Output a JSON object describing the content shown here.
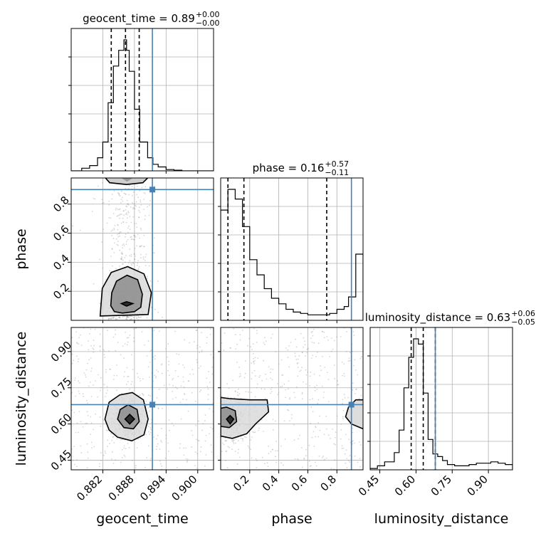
{
  "chart_data": {
    "type": "corner",
    "colors": {
      "truth": "#4682b4",
      "hist": "#000000",
      "grid": "#b0b0b0",
      "contour": "#000000",
      "samples": "#888888"
    },
    "parameters": [
      {
        "name": "geocent_time",
        "title_main": "geocent_time = 0.89",
        "title_plus": "+0.00",
        "title_minus": "−0.00",
        "range": [
          0.876,
          0.903
        ],
        "ticks": [
          0.882,
          0.888,
          0.894,
          0.9
        ],
        "tick_labels": [
          "0.882",
          "0.888",
          "0.894",
          "0.900"
        ],
        "truth": 0.8914,
        "quantiles": [
          0.8836,
          0.8863,
          0.8889
        ],
        "hist_edges": [
          0.876,
          0.878,
          0.8795,
          0.881,
          0.882,
          0.883,
          0.884,
          0.885,
          0.886,
          0.8865,
          0.887,
          0.888,
          0.889,
          0.8905,
          0.8915,
          0.8925,
          0.894,
          0.8955,
          0.897,
          0.898,
          0.903
        ],
        "hist_counts": [
          0,
          0.02,
          0.04,
          0.1,
          0.22,
          0.52,
          0.8,
          0.92,
          1.0,
          0.92,
          0.76,
          0.47,
          0.22,
          0.1,
          0.05,
          0.03,
          0.01,
          0.005,
          0,
          0
        ]
      },
      {
        "name": "phase",
        "title_main": "phase = 0.16",
        "title_plus": "+0.57",
        "title_minus": "−0.11",
        "range": [
          0.0,
          0.98
        ],
        "ticks": [
          0.2,
          0.4,
          0.6,
          0.8
        ],
        "tick_labels": [
          "0.2",
          "0.4",
          "0.6",
          "0.8"
        ],
        "truth": 0.9,
        "quantiles": [
          0.05,
          0.16,
          0.73
        ],
        "hist_edges": [
          0.0,
          0.05,
          0.1,
          0.15,
          0.2,
          0.25,
          0.3,
          0.35,
          0.4,
          0.45,
          0.5,
          0.55,
          0.6,
          0.65,
          0.7,
          0.75,
          0.8,
          0.85,
          0.88,
          0.93,
          0.98
        ],
        "hist_counts": [
          0.8,
          0.95,
          0.88,
          0.68,
          0.44,
          0.33,
          0.23,
          0.16,
          0.12,
          0.08,
          0.06,
          0.05,
          0.04,
          0.04,
          0.04,
          0.05,
          0.08,
          0.1,
          0.17,
          0.48
        ]
      },
      {
        "name": "luminosity_distance",
        "title_main": "luminosity_distance = 0.63",
        "title_plus": "+0.06",
        "title_minus": "−0.05",
        "range": [
          0.41,
          1.0
        ],
        "ticks": [
          0.45,
          0.6,
          0.75,
          0.9
        ],
        "tick_labels": [
          "0.45",
          "0.60",
          "0.75",
          "0.90"
        ],
        "truth": 0.68,
        "quantiles": [
          0.58,
          0.63,
          0.68
        ],
        "hist_edges": [
          0.41,
          0.44,
          0.47,
          0.51,
          0.53,
          0.55,
          0.57,
          0.59,
          0.61,
          0.63,
          0.65,
          0.67,
          0.69,
          0.71,
          0.73,
          0.76,
          0.79,
          0.82,
          0.85,
          0.88,
          0.91,
          0.94,
          0.97,
          1.0
        ],
        "hist_counts": [
          0.01,
          0.03,
          0.06,
          0.13,
          0.3,
          0.62,
          0.85,
          0.99,
          0.95,
          0.58,
          0.23,
          0.12,
          0.1,
          0.07,
          0.04,
          0.03,
          0.03,
          0.04,
          0.05,
          0.05,
          0.06,
          0.05,
          0.04
        ]
      }
    ],
    "contours": [
      {
        "x": "geocent_time",
        "y": "phase",
        "truth": [
          0.8914,
          0.9
        ],
        "peak": [
          0.8865,
          0.1
        ],
        "levels": [
          [
            [
              0.8835,
              0.1
            ],
            [
              0.8837,
              0.19
            ],
            [
              0.8846,
              0.27
            ],
            [
              0.8866,
              0.31
            ],
            [
              0.8886,
              0.28
            ],
            [
              0.8895,
              0.18
            ],
            [
              0.8892,
              0.09
            ],
            [
              0.888,
              0.06
            ],
            [
              0.8857,
              0.05
            ],
            [
              0.8842,
              0.06
            ]
          ],
          [
            [
              0.8815,
              0.03
            ],
            [
              0.8819,
              0.22
            ],
            [
              0.8836,
              0.33
            ],
            [
              0.8867,
              0.37
            ],
            [
              0.8898,
              0.32
            ],
            [
              0.8912,
              0.19
            ],
            [
              0.8906,
              0.04
            ]
          ],
          [
            [
              0.8855,
              0.115
            ],
            [
              0.8865,
              0.128
            ],
            [
              0.8877,
              0.115
            ],
            [
              0.8865,
              0.098
            ]
          ]
        ],
        "upper_levels": [
          [
            [
              0.8825,
              0.98
            ],
            [
              0.8833,
              0.947
            ],
            [
              0.8865,
              0.935
            ],
            [
              0.8896,
              0.947
            ],
            [
              0.8905,
              0.98
            ]
          ]
        ],
        "upper_density": [
          [
            0.8855,
            0.98
          ],
          [
            0.8866,
            0.955
          ],
          [
            0.8877,
            0.98
          ]
        ]
      },
      {
        "x": "geocent_time",
        "y": "luminosity_distance",
        "truth": [
          0.8914,
          0.68
        ],
        "peak": [
          0.887,
          0.62
        ],
        "levels": [
          [
            [
              0.8848,
              0.62
            ],
            [
              0.8853,
              0.66
            ],
            [
              0.8868,
              0.68
            ],
            [
              0.8885,
              0.66
            ],
            [
              0.8889,
              0.61
            ],
            [
              0.8878,
              0.58
            ],
            [
              0.886,
              0.585
            ]
          ],
          [
            [
              0.8824,
              0.62
            ],
            [
              0.8832,
              0.69
            ],
            [
              0.8852,
              0.72
            ],
            [
              0.8876,
              0.73
            ],
            [
              0.8897,
              0.7
            ],
            [
              0.8906,
              0.62
            ],
            [
              0.8898,
              0.555
            ],
            [
              0.8875,
              0.53
            ],
            [
              0.8848,
              0.545
            ],
            [
              0.8832,
              0.575
            ]
          ],
          [
            [
              0.8862,
              0.62
            ],
            [
              0.8871,
              0.64
            ],
            [
              0.888,
              0.62
            ],
            [
              0.8871,
              0.6
            ]
          ]
        ]
      },
      {
        "x": "phase",
        "y": "luminosity_distance",
        "truth": [
          0.9,
          0.68
        ],
        "peak": [
          0.06,
          0.62
        ],
        "levels": [
          [
            [
              0.0,
              0.59
            ],
            [
              0.06,
              0.585
            ],
            [
              0.11,
              0.61
            ],
            [
              0.1,
              0.655
            ],
            [
              0.04,
              0.67
            ],
            [
              0.0,
              0.665
            ]
          ],
          [
            [
              0.0,
              0.55
            ],
            [
              0.08,
              0.54
            ],
            [
              0.18,
              0.56
            ],
            [
              0.24,
              0.6
            ],
            [
              0.33,
              0.65
            ],
            [
              0.32,
              0.7
            ],
            [
              0.2,
              0.7
            ],
            [
              0.06,
              0.705
            ],
            [
              0.0,
              0.71
            ]
          ],
          [
            [
              0.04,
              0.62
            ],
            [
              0.065,
              0.635
            ],
            [
              0.09,
              0.62
            ],
            [
              0.065,
              0.6
            ]
          ]
        ],
        "edge_levels": [
          [
            [
              0.98,
              0.58
            ],
            [
              0.9,
              0.6
            ],
            [
              0.86,
              0.63
            ],
            [
              0.88,
              0.67
            ],
            [
              0.93,
              0.7
            ],
            [
              0.98,
              0.7
            ]
          ]
        ]
      }
    ]
  }
}
